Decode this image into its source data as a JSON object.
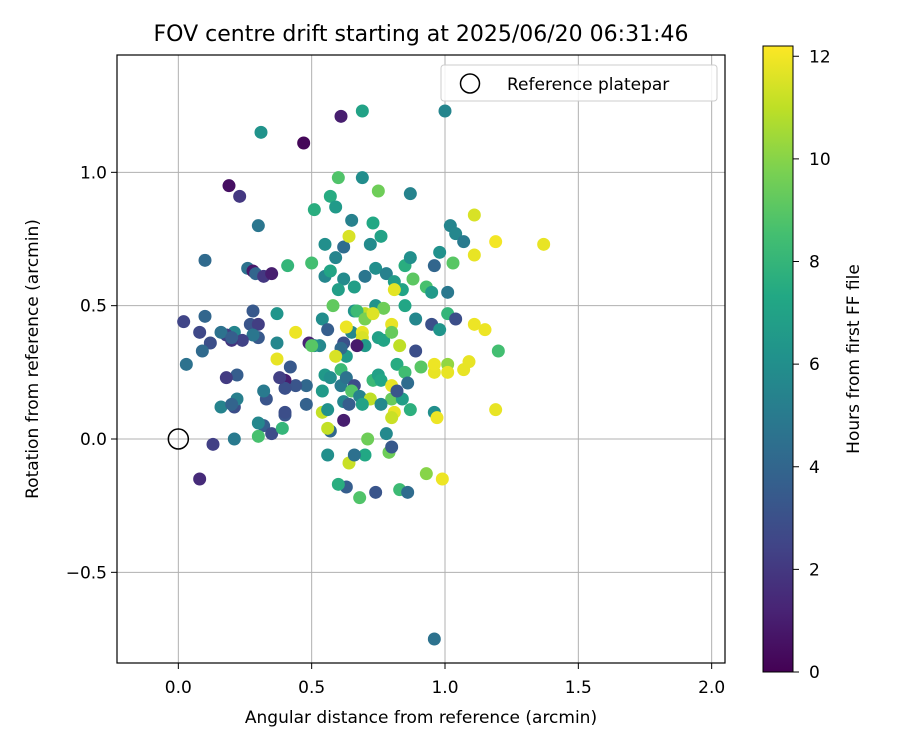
{
  "chart_data": {
    "type": "scatter",
    "title": "FOV centre drift starting at 2025/06/20 06:31:46",
    "xlabel": "Angular distance from reference (arcmin)",
    "ylabel": "Rotation from reference (arcmin)",
    "xlim": [
      -0.23,
      2.05
    ],
    "ylim": [
      -0.84,
      1.44
    ],
    "xticks": [
      0.0,
      0.5,
      1.0,
      1.5,
      2.0
    ],
    "xtick_labels": [
      "0.0",
      "0.5",
      "1.0",
      "1.5",
      "2.0"
    ],
    "yticks": [
      -0.5,
      0.0,
      0.5,
      1.0
    ],
    "ytick_labels": [
      "−0.5",
      "0.0",
      "0.5",
      "1.0"
    ],
    "grid": true,
    "legend": {
      "placement": "top-right",
      "entries": [
        "Reference platepar"
      ]
    },
    "reference_point": {
      "x": 0.0,
      "y": 0.0,
      "label": "Reference platepar"
    },
    "colorbar": {
      "label": "Hours from first FF file",
      "range": [
        0,
        12.2
      ],
      "ticks": [
        0,
        2,
        4,
        6,
        8,
        10,
        12
      ],
      "tick_labels": [
        "0",
        "2",
        "4",
        "6",
        "8",
        "10",
        "12"
      ],
      "colormap": "viridis"
    },
    "points": [
      [
        0.47,
        1.11,
        0.2
      ],
      [
        0.61,
        1.21,
        1.0
      ],
      [
        0.69,
        1.23,
        7.0
      ],
      [
        1.0,
        1.23,
        5.5
      ],
      [
        0.31,
        1.15,
        6.2
      ],
      [
        0.19,
        0.95,
        0.5
      ],
      [
        0.23,
        0.91,
        2.0
      ],
      [
        0.3,
        0.8,
        4.8
      ],
      [
        0.1,
        0.67,
        4.2
      ],
      [
        0.26,
        0.64,
        4.6
      ],
      [
        0.28,
        0.63,
        0.8
      ],
      [
        0.29,
        0.62,
        4.0
      ],
      [
        0.32,
        0.61,
        2.0
      ],
      [
        0.35,
        0.62,
        1.0
      ],
      [
        0.41,
        0.65,
        8.0
      ],
      [
        0.5,
        0.66,
        8.5
      ],
      [
        0.55,
        0.73,
        6.0
      ],
      [
        0.57,
        0.91,
        7.5
      ],
      [
        0.6,
        0.98,
        8.8
      ],
      [
        0.69,
        0.98,
        5.9
      ],
      [
        0.75,
        0.93,
        9.5
      ],
      [
        0.87,
        0.92,
        5.4
      ],
      [
        0.51,
        0.86,
        7.6
      ],
      [
        0.59,
        0.87,
        6.6
      ],
      [
        0.62,
        0.72,
        4.3
      ],
      [
        0.65,
        0.82,
        5.3
      ],
      [
        0.73,
        0.81,
        7.3
      ],
      [
        0.76,
        0.76,
        7.0
      ],
      [
        0.72,
        0.73,
        5.8
      ],
      [
        0.85,
        0.65,
        7.6
      ],
      [
        0.87,
        0.68,
        6.0
      ],
      [
        1.02,
        0.8,
        5.5
      ],
      [
        1.04,
        0.77,
        5.6
      ],
      [
        1.07,
        0.74,
        5.0
      ],
      [
        0.96,
        0.65,
        4.0
      ],
      [
        0.98,
        0.7,
        6.1
      ],
      [
        1.01,
        0.55,
        4.9
      ],
      [
        1.03,
        0.66,
        9.0
      ],
      [
        1.11,
        0.84,
        11.5
      ],
      [
        1.19,
        0.74,
        12.0
      ],
      [
        1.37,
        0.73,
        11.8
      ],
      [
        1.11,
        0.69,
        11.8
      ],
      [
        0.64,
        0.76,
        11.5
      ],
      [
        0.55,
        0.61,
        5.6
      ],
      [
        0.57,
        0.63,
        7.1
      ],
      [
        0.59,
        0.68,
        5.5
      ],
      [
        0.62,
        0.6,
        5.8
      ],
      [
        0.66,
        0.57,
        6.8
      ],
      [
        0.7,
        0.61,
        4.8
      ],
      [
        0.74,
        0.64,
        6.0
      ],
      [
        0.78,
        0.62,
        5.3
      ],
      [
        0.81,
        0.59,
        6.7
      ],
      [
        0.84,
        0.56,
        7.1
      ],
      [
        0.88,
        0.6,
        9.1
      ],
      [
        0.93,
        0.57,
        8.6
      ],
      [
        0.95,
        0.55,
        6.6
      ],
      [
        0.81,
        0.56,
        11.7
      ],
      [
        0.6,
        0.56,
        6.8
      ],
      [
        0.58,
        0.5,
        9.2
      ],
      [
        0.66,
        0.48,
        6.3
      ],
      [
        0.7,
        0.47,
        11.0
      ],
      [
        0.74,
        0.5,
        6.2
      ],
      [
        0.77,
        0.49,
        9.5
      ],
      [
        0.8,
        0.43,
        11.8
      ],
      [
        0.85,
        0.5,
        7.2
      ],
      [
        0.89,
        0.45,
        5.6
      ],
      [
        0.95,
        0.43,
        3.0
      ],
      [
        0.98,
        0.41,
        6.3
      ],
      [
        1.01,
        0.47,
        8.0
      ],
      [
        1.04,
        0.45,
        2.9
      ],
      [
        1.11,
        0.43,
        11.9
      ],
      [
        1.15,
        0.41,
        11.9
      ],
      [
        0.89,
        0.33,
        2.9
      ],
      [
        0.82,
        0.28,
        7.5
      ],
      [
        0.85,
        0.25,
        8.4
      ],
      [
        0.91,
        0.27,
        9.0
      ],
      [
        0.96,
        0.25,
        11.8
      ],
      [
        0.96,
        0.28,
        11.9
      ],
      [
        1.01,
        0.28,
        10.2
      ],
      [
        1.01,
        0.25,
        11.8
      ],
      [
        1.07,
        0.26,
        11.8
      ],
      [
        1.09,
        0.29,
        11.8
      ],
      [
        1.2,
        0.33,
        8.5
      ],
      [
        1.19,
        0.11,
        11.8
      ],
      [
        0.96,
        0.1,
        6.0
      ],
      [
        0.97,
        0.08,
        11.9
      ],
      [
        0.93,
        -0.13,
        10.0
      ],
      [
        0.99,
        -0.15,
        11.9
      ],
      [
        0.83,
        -0.19,
        8.3
      ],
      [
        0.86,
        -0.2,
        4.3
      ],
      [
        0.74,
        -0.2,
        3.2
      ],
      [
        0.63,
        -0.18,
        3.6
      ],
      [
        0.6,
        -0.17,
        7.6
      ],
      [
        0.68,
        -0.22,
        8.8
      ],
      [
        0.64,
        -0.09,
        11.2
      ],
      [
        0.7,
        -0.06,
        7.3
      ],
      [
        0.66,
        -0.06,
        4.5
      ],
      [
        0.56,
        -0.06,
        6.0
      ],
      [
        0.79,
        -0.05,
        9.5
      ],
      [
        0.78,
        0.02,
        5.7
      ],
      [
        0.71,
        0.0,
        9.5
      ],
      [
        0.8,
        -0.03,
        3.4
      ],
      [
        0.57,
        0.03,
        4.1
      ],
      [
        0.56,
        0.04,
        11.1
      ],
      [
        0.54,
        0.1,
        11.1
      ],
      [
        0.56,
        0.11,
        6.1
      ],
      [
        0.62,
        0.07,
        1.0
      ],
      [
        0.53,
        0.35,
        5.6
      ],
      [
        0.51,
        0.35,
        6.0
      ],
      [
        0.54,
        0.45,
        5.9
      ],
      [
        0.56,
        0.41,
        3.6
      ],
      [
        0.63,
        0.31,
        6.6
      ],
      [
        0.62,
        0.36,
        3.0
      ],
      [
        0.65,
        0.4,
        5.6
      ],
      [
        0.63,
        0.42,
        11.9
      ],
      [
        0.69,
        0.4,
        11.8
      ],
      [
        0.67,
        0.48,
        8.3
      ],
      [
        0.7,
        0.45,
        9.7
      ],
      [
        0.73,
        0.47,
        11.6
      ],
      [
        0.75,
        0.38,
        6.9
      ],
      [
        0.77,
        0.37,
        7.1
      ],
      [
        0.8,
        0.4,
        9.3
      ],
      [
        0.83,
        0.35,
        11.0
      ],
      [
        0.69,
        0.38,
        11.5
      ],
      [
        0.7,
        0.35,
        6.5
      ],
      [
        0.67,
        0.35,
        0.9
      ],
      [
        0.61,
        0.34,
        4.2
      ],
      [
        0.59,
        0.31,
        11.5
      ],
      [
        0.61,
        0.26,
        8.2
      ],
      [
        0.55,
        0.24,
        6.5
      ],
      [
        0.57,
        0.23,
        6.0
      ],
      [
        0.61,
        0.2,
        5.0
      ],
      [
        0.63,
        0.23,
        4.6
      ],
      [
        0.66,
        0.2,
        2.8
      ],
      [
        0.65,
        0.18,
        8.9
      ],
      [
        0.62,
        0.14,
        5.5
      ],
      [
        0.64,
        0.13,
        3.6
      ],
      [
        0.68,
        0.16,
        5.4
      ],
      [
        0.72,
        0.15,
        11.0
      ],
      [
        0.73,
        0.22,
        8.2
      ],
      [
        0.75,
        0.24,
        6.9
      ],
      [
        0.76,
        0.22,
        7.2
      ],
      [
        0.8,
        0.2,
        11.8
      ],
      [
        0.8,
        0.15,
        9.3
      ],
      [
        0.84,
        0.15,
        6.8
      ],
      [
        0.82,
        0.18,
        3.2
      ],
      [
        0.86,
        0.21,
        4.3
      ],
      [
        0.87,
        0.11,
        7.7
      ],
      [
        0.81,
        0.1,
        11.8
      ],
      [
        0.8,
        0.08,
        11.2
      ],
      [
        0.76,
        0.13,
        5.7
      ],
      [
        0.69,
        0.13,
        7.0
      ],
      [
        0.54,
        0.18,
        6.6
      ],
      [
        0.48,
        0.2,
        4.1
      ],
      [
        0.44,
        0.2,
        3.2
      ],
      [
        0.48,
        0.13,
        3.8
      ],
      [
        0.42,
        0.27,
        3.4
      ],
      [
        0.4,
        0.22,
        1.0
      ],
      [
        0.4,
        0.19,
        3.0
      ],
      [
        0.38,
        0.23,
        2.3
      ],
      [
        0.37,
        0.3,
        11.8
      ],
      [
        0.37,
        0.36,
        5.6
      ],
      [
        0.37,
        0.47,
        6.3
      ],
      [
        0.44,
        0.4,
        11.9
      ],
      [
        0.49,
        0.36,
        1.2
      ],
      [
        0.5,
        0.35,
        9.0
      ],
      [
        0.28,
        0.48,
        3.4
      ],
      [
        0.27,
        0.43,
        3.2
      ],
      [
        0.3,
        0.43,
        2.2
      ],
      [
        0.3,
        0.38,
        3.4
      ],
      [
        0.28,
        0.39,
        4.8
      ],
      [
        0.21,
        0.4,
        5.5
      ],
      [
        0.24,
        0.37,
        2.4
      ],
      [
        0.18,
        0.39,
        2.2
      ],
      [
        0.2,
        0.37,
        1.9
      ],
      [
        0.16,
        0.4,
        4.6
      ],
      [
        0.1,
        0.46,
        4.0
      ],
      [
        0.12,
        0.36,
        2.9
      ],
      [
        0.09,
        0.33,
        4.2
      ],
      [
        0.08,
        0.4,
        2.6
      ],
      [
        0.02,
        0.44,
        2.5
      ],
      [
        0.03,
        0.28,
        4.6
      ],
      [
        0.2,
        0.38,
        3.6
      ],
      [
        0.22,
        0.24,
        3.6
      ],
      [
        0.18,
        0.23,
        2.1
      ],
      [
        0.21,
        0.12,
        2.9
      ],
      [
        0.22,
        0.15,
        5.2
      ],
      [
        0.16,
        0.12,
        5.4
      ],
      [
        0.2,
        0.13,
        3.9
      ],
      [
        0.32,
        0.05,
        3.6
      ],
      [
        0.3,
        0.06,
        5.6
      ],
      [
        0.35,
        0.02,
        2.8
      ],
      [
        0.3,
        0.01,
        8.6
      ],
      [
        0.39,
        0.04,
        8.0
      ],
      [
        0.4,
        0.09,
        3.2
      ],
      [
        0.4,
        0.1,
        2.9
      ],
      [
        0.33,
        0.15,
        3.2
      ],
      [
        0.32,
        0.18,
        5.0
      ],
      [
        0.21,
        0.0,
        5.0
      ],
      [
        0.13,
        -0.02,
        2.3
      ],
      [
        0.08,
        -0.15,
        1.5
      ],
      [
        0.96,
        -0.75,
        4.6
      ]
    ]
  }
}
